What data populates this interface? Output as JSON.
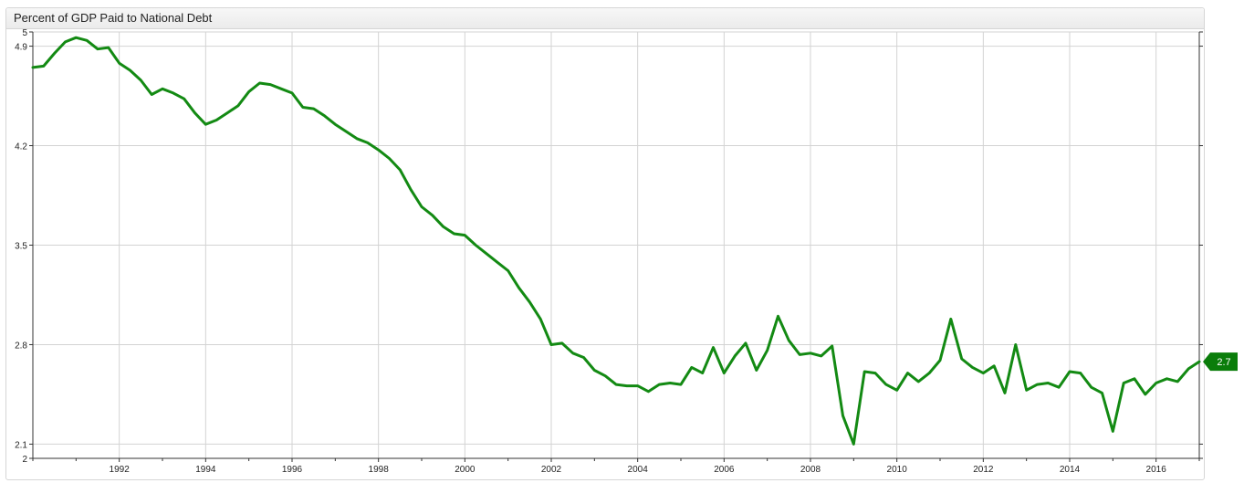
{
  "chart_data": {
    "type": "line",
    "title": "Percent of GDP Paid to National Debt",
    "xlabel": "",
    "ylabel": "",
    "xlim": [
      1990.0,
      2017.0
    ],
    "ylim": [
      2.0,
      5.0
    ],
    "x_ticks": [
      "1992",
      "1994",
      "1996",
      "1998",
      "2000",
      "2002",
      "2004",
      "2006",
      "2008",
      "2010",
      "2012",
      "2014",
      "2016"
    ],
    "y_ticks": [
      "2",
      "2.1",
      "2.8",
      "3.5",
      "4.2",
      "4.9",
      "5"
    ],
    "grid": true,
    "legend": "none",
    "last_value_label": "2.7",
    "colors": {
      "line": "#138a13",
      "badge": "#0a7d0a",
      "grid": "#d3d3d3",
      "axis": "#333333"
    },
    "series": [
      {
        "x": [
          1990.0,
          1990.25,
          1990.5,
          1990.75,
          1991.0,
          1991.25,
          1991.5,
          1991.75,
          1992.0,
          1992.25,
          1992.5,
          1992.75,
          1993.0,
          1993.25,
          1993.5,
          1993.75,
          1994.0,
          1994.25,
          1994.5,
          1994.75,
          1995.0,
          1995.25,
          1995.5,
          1995.75,
          1996.0,
          1996.25,
          1996.5,
          1996.75,
          1997.0,
          1997.25,
          1997.5,
          1997.75,
          1998.0,
          1998.25,
          1998.5,
          1998.75,
          1999.0,
          1999.25,
          1999.5,
          1999.75,
          2000.0,
          2000.25,
          2000.5,
          2000.75,
          2001.0,
          2001.25,
          2001.5,
          2001.75,
          2002.0,
          2002.25,
          2002.5,
          2002.75,
          2003.0,
          2003.25,
          2003.5,
          2003.75,
          2004.0,
          2004.25,
          2004.5,
          2004.75,
          2005.0,
          2005.25,
          2005.5,
          2005.75,
          2006.0,
          2006.25,
          2006.5,
          2006.75,
          2007.0,
          2007.25,
          2007.5,
          2007.75,
          2008.0,
          2008.25,
          2008.5,
          2008.75,
          2009.0,
          2009.25,
          2009.5,
          2009.75,
          2010.0,
          2010.25,
          2010.5,
          2010.75,
          2011.0,
          2011.25,
          2011.5,
          2011.75,
          2012.0,
          2012.25,
          2012.5,
          2012.75,
          2013.0,
          2013.25,
          2013.5,
          2013.75,
          2014.0,
          2014.25,
          2014.5,
          2014.75,
          2015.0,
          2015.25,
          2015.5,
          2015.75,
          2016.0,
          2016.25,
          2016.5,
          2016.75,
          2017.0
        ],
        "y": [
          4.75,
          4.76,
          4.85,
          4.93,
          4.96,
          4.94,
          4.88,
          4.89,
          4.78,
          4.73,
          4.66,
          4.56,
          4.6,
          4.57,
          4.53,
          4.43,
          4.35,
          4.38,
          4.43,
          4.48,
          4.58,
          4.64,
          4.63,
          4.6,
          4.57,
          4.47,
          4.46,
          4.41,
          4.35,
          4.3,
          4.25,
          4.22,
          4.17,
          4.11,
          4.03,
          3.89,
          3.77,
          3.71,
          3.63,
          3.58,
          3.57,
          3.5,
          3.44,
          3.38,
          3.32,
          3.2,
          3.1,
          2.98,
          2.8,
          2.81,
          2.74,
          2.71,
          2.62,
          2.58,
          2.52,
          2.51,
          2.51,
          2.47,
          2.52,
          2.53,
          2.52,
          2.64,
          2.6,
          2.78,
          2.6,
          2.72,
          2.81,
          2.62,
          2.76,
          3.0,
          2.83,
          2.73,
          2.74,
          2.72,
          2.79,
          2.3,
          2.1,
          2.61,
          2.6,
          2.52,
          2.48,
          2.6,
          2.54,
          2.6,
          2.69,
          2.98,
          2.7,
          2.64,
          2.6,
          2.65,
          2.46,
          2.8,
          2.48,
          2.52,
          2.53,
          2.5,
          2.61,
          2.6,
          2.5,
          2.46,
          2.19,
          2.53,
          2.56,
          2.45,
          2.53,
          2.56,
          2.54,
          2.63,
          2.68
        ]
      }
    ]
  }
}
